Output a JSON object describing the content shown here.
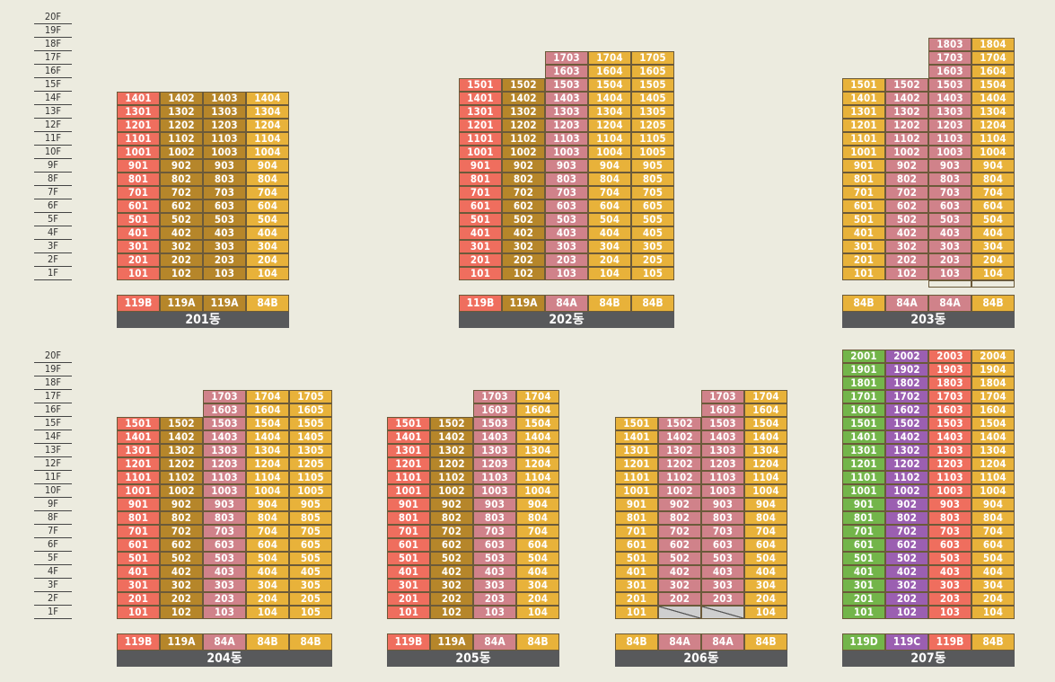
{
  "floor_labels": [
    "20F",
    "19F",
    "18F",
    "17F",
    "16F",
    "15F",
    "14F",
    "13F",
    "12F",
    "11F",
    "10F",
    "9F",
    "8F",
    "7F",
    "6F",
    "5F",
    "4F",
    "3F",
    "2F",
    "1F"
  ],
  "type_colors": {
    "119B": "#ef6e5e",
    "119A": "#b6862a",
    "84A": "#d0828a",
    "84B": "#e8b23a",
    "119D": "#73b54a",
    "119C": "#9b5fb1"
  },
  "buildings": [
    {
      "name": "201동",
      "lines": [
        {
          "num": 1,
          "type": "119B",
          "top": 14
        },
        {
          "num": 2,
          "type": "119A",
          "top": 14
        },
        {
          "num": 3,
          "type": "119A",
          "top": 14
        },
        {
          "num": 4,
          "type": "84B",
          "top": 14
        }
      ]
    },
    {
      "name": "202동",
      "lines": [
        {
          "num": 1,
          "type": "119B",
          "top": 15
        },
        {
          "num": 2,
          "type": "119A",
          "top": 15
        },
        {
          "num": 3,
          "type": "84A",
          "top": 17
        },
        {
          "num": 4,
          "type": "84B",
          "top": 17
        },
        {
          "num": 5,
          "type": "84B",
          "top": 17
        }
      ]
    },
    {
      "name": "203동",
      "lines": [
        {
          "num": 1,
          "type": "84B",
          "top": 15
        },
        {
          "num": 2,
          "type": "84A",
          "top": 15
        },
        {
          "num": 3,
          "type": "84A",
          "top": 18
        },
        {
          "num": 4,
          "type": "84B",
          "top": 18
        }
      ]
    },
    {
      "name": "204동",
      "lines": [
        {
          "num": 1,
          "type": "119B",
          "top": 15
        },
        {
          "num": 2,
          "type": "119A",
          "top": 15
        },
        {
          "num": 3,
          "type": "84A",
          "top": 17
        },
        {
          "num": 4,
          "type": "84B",
          "top": 17
        },
        {
          "num": 5,
          "type": "84B",
          "top": 17
        }
      ]
    },
    {
      "name": "205동",
      "lines": [
        {
          "num": 1,
          "type": "119B",
          "top": 15
        },
        {
          "num": 2,
          "type": "119A",
          "top": 15
        },
        {
          "num": 3,
          "type": "84A",
          "top": 17
        },
        {
          "num": 4,
          "type": "84B",
          "top": 17
        }
      ]
    },
    {
      "name": "206동",
      "lines": [
        {
          "num": 1,
          "type": "84B",
          "top": 15
        },
        {
          "num": 2,
          "type": "84A",
          "top": 15,
          "missing": [
            1
          ]
        },
        {
          "num": 3,
          "type": "84A",
          "top": 17,
          "missing": [
            1
          ]
        },
        {
          "num": 4,
          "type": "84B",
          "top": 17
        }
      ]
    },
    {
      "name": "207동",
      "lines": [
        {
          "num": 1,
          "type": "119D",
          "top": 20
        },
        {
          "num": 2,
          "type": "119C",
          "top": 20
        },
        {
          "num": 3,
          "type": "119B",
          "top": 20
        },
        {
          "num": 4,
          "type": "84B",
          "top": 20
        }
      ]
    }
  ]
}
